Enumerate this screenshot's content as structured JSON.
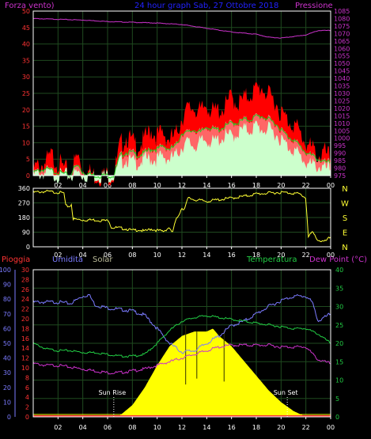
{
  "colors": {
    "background": "#000000",
    "frame": "#ffffff",
    "grid": "#1f4a1f",
    "wind_gust": "#ff0000",
    "wind_avg": "#ff6666",
    "wind_low": "#ccffcc",
    "wind_mid": "#22cc22",
    "pressure": "#cc33cc",
    "direction": "#ffff33",
    "rain_axis": "#ff3333",
    "humidity": "#7b7bff",
    "solar": "#ffff00",
    "temperature": "#22cc44",
    "dewpoint": "#cc33cc",
    "title": "#2222ff",
    "sun_label": "#ffffff"
  },
  "header": {
    "left": "Forza vento)",
    "center": "24 hour graph Sab, 27 Ottobre 2018",
    "right": "Pressione"
  },
  "panel3_labels": {
    "rain": "Pioggia",
    "humidity": "Umidita",
    "solar": "Solar",
    "temperature": "Temperatura",
    "dewpoint": "Dew Point (°C)",
    "sunrise": "Sun Rise",
    "sunset": "Sun Set"
  },
  "chart_data": [
    {
      "type": "line",
      "panel": "wind_pressure",
      "x_tick_labels": [
        "02",
        "04",
        "06",
        "08",
        "10",
        "12",
        "14",
        "16",
        "18",
        "20",
        "22",
        "00"
      ],
      "xlim_hours": [
        0,
        24
      ],
      "left_axis": {
        "label": "Forza vento)",
        "ylim": [
          0,
          50
        ],
        "ticks": [
          0,
          5,
          10,
          15,
          20,
          25,
          30,
          35,
          40,
          45,
          50
        ]
      },
      "right_axis": {
        "label": "Pressione",
        "ylim": [
          975,
          1085
        ],
        "ticks": [
          975,
          980,
          985,
          990,
          995,
          1000,
          1005,
          1010,
          1015,
          1020,
          1025,
          1030,
          1035,
          1040,
          1045,
          1050,
          1055,
          1060,
          1065,
          1070,
          1075,
          1080,
          1085
        ]
      },
      "series": [
        {
          "name": "Pressione",
          "axis": "right",
          "hours": [
            0,
            2,
            4,
            6,
            8,
            10,
            12,
            14,
            16,
            18,
            19,
            20,
            21,
            22,
            23,
            24
          ],
          "values": [
            1080,
            1079.5,
            1079,
            1078,
            1077.5,
            1077,
            1076,
            1073.5,
            1071,
            1069.5,
            1067.5,
            1067,
            1068,
            1069,
            1072,
            1072
          ]
        },
        {
          "hours": [
            0,
            1,
            1.5,
            2,
            3,
            3.2,
            3.6,
            4,
            4.5,
            5,
            6,
            6.5,
            7,
            7.5,
            8,
            8.5,
            9,
            9.5,
            10,
            10.5,
            11,
            11.5,
            12,
            12.5,
            13,
            13.5,
            14,
            14.5,
            15,
            15.5,
            16,
            16.5,
            17,
            17.5,
            18,
            18.5,
            19,
            19.5,
            20,
            20.5,
            21,
            21.5,
            22,
            22.5,
            23,
            23.5,
            24
          ],
          "values": [
            2,
            4,
            6,
            4,
            0,
            3,
            6,
            2,
            1,
            0,
            0,
            0,
            9,
            12,
            10,
            9,
            11,
            14,
            12,
            13,
            11,
            12,
            18,
            20,
            21,
            19,
            22,
            19,
            20,
            21,
            24,
            22,
            23,
            25,
            26,
            27,
            24,
            23,
            19,
            17,
            16,
            13,
            10,
            8,
            6,
            7,
            5
          ]
        },
        {
          "hours": [
            0,
            1,
            2,
            3,
            3.2,
            3.6,
            4,
            5,
            6,
            6.5,
            7,
            7.5,
            8,
            8.5,
            9,
            9.5,
            10,
            10.5,
            11,
            11.5,
            12,
            12.5,
            13,
            13.5,
            14,
            14.5,
            15,
            15.5,
            16,
            16.5,
            17,
            17.5,
            18,
            18.5,
            19,
            19.5,
            20,
            20.5,
            21,
            21.5,
            22,
            22.5,
            23,
            23.5,
            24
          ],
          "values": [
            1,
            2,
            1,
            0,
            2,
            3,
            1,
            0,
            0,
            0,
            6,
            7,
            7,
            6,
            7,
            8,
            8,
            9,
            8,
            9,
            13,
            13,
            14,
            13,
            15,
            14,
            14,
            15,
            16,
            16,
            17,
            17,
            18,
            18,
            17,
            16,
            14,
            12,
            11,
            9,
            7,
            6,
            5,
            4,
            4
          ]
        },
        {
          "hours": [
            0,
            1,
            2,
            3,
            3.6,
            4,
            5,
            6,
            6.5,
            7,
            7.5,
            8,
            8.5,
            9,
            9.5,
            10,
            10.5,
            11,
            11.5,
            12,
            12.5,
            13,
            13.5,
            14,
            14.5,
            15,
            15.5,
            16,
            16.5,
            17,
            17.5,
            18,
            18.5,
            19,
            19.5,
            20,
            20.5,
            21,
            21.5,
            22,
            22.5,
            23,
            23.5,
            24
          ],
          "values": [
            0,
            1,
            0,
            0,
            1,
            0,
            0,
            0,
            0,
            4,
            5,
            4,
            4,
            5,
            5,
            5,
            6,
            5,
            6,
            9,
            10,
            9,
            10,
            11,
            10,
            11,
            12,
            12,
            13,
            14,
            14,
            15,
            14,
            14,
            13,
            11,
            9,
            8,
            6,
            4,
            3,
            3,
            2,
            2
          ]
        }
      ]
    },
    {
      "type": "line",
      "panel": "wind_direction",
      "x_tick_labels": [
        "02",
        "04",
        "06",
        "08",
        "10",
        "12",
        "14",
        "16",
        "18",
        "20",
        "22",
        "00"
      ],
      "xlim_hours": [
        0,
        24
      ],
      "left_axis": {
        "ylim": [
          0,
          360
        ],
        "ticks": [
          0,
          90,
          180,
          270,
          360
        ]
      },
      "right_axis": {
        "ticks": [
          "N",
          "W",
          "S",
          "E",
          "N"
        ]
      },
      "series": [
        {
          "hours": [
            0,
            1,
            2,
            2.5,
            2.6,
            3,
            3.1,
            3.2,
            4,
            5,
            6,
            6.1,
            6.3,
            7,
            7.5,
            8,
            8.5,
            9,
            9.5,
            10,
            10.5,
            11,
            11.2,
            11.5,
            12,
            12.2,
            12.5,
            13,
            13.5,
            14,
            15,
            16,
            17,
            18,
            19,
            20,
            21,
            21.5,
            22,
            22.2,
            22.5,
            23,
            23.5,
            24
          ],
          "values": [
            335,
            340,
            335,
            330,
            250,
            250,
            270,
            170,
            165,
            165,
            160,
            165,
            120,
            115,
            110,
            100,
            105,
            95,
            110,
            100,
            95,
            120,
            80,
            160,
            240,
            230,
            300,
            290,
            285,
            280,
            290,
            300,
            310,
            325,
            330,
            335,
            330,
            325,
            300,
            60,
            90,
            40,
            30,
            60
          ]
        }
      ]
    },
    {
      "type": "line",
      "panel": "temp_humidity_solar_rain",
      "x_tick_labels": [
        "02",
        "04",
        "06",
        "08",
        "10",
        "12",
        "14",
        "16",
        "18",
        "20",
        "22",
        "00"
      ],
      "xlim_hours": [
        0,
        24
      ],
      "axes": {
        "rain": {
          "label": "Pioggia",
          "ylim": [
            0,
            30
          ],
          "ticks": [
            0,
            2,
            4,
            6,
            8,
            10,
            12,
            14,
            16,
            18,
            20,
            22,
            24,
            26,
            28,
            30
          ]
        },
        "humidity": {
          "label": "Umidita",
          "ylim": [
            0,
            100
          ],
          "ticks": [
            0,
            10,
            20,
            30,
            40,
            50,
            60,
            70,
            80,
            90,
            100
          ]
        },
        "temperature": {
          "label": "Temperatura",
          "ylim": [
            0,
            40
          ],
          "ticks": [
            0,
            5,
            10,
            15,
            20,
            25,
            30,
            35,
            40
          ]
        }
      },
      "series": [
        {
          "name": "Umidita",
          "axis": "humidity",
          "hours": [
            0,
            1,
            2,
            3,
            4,
            4.5,
            5,
            6,
            7,
            8,
            9,
            10,
            11,
            12,
            13,
            14,
            15,
            16,
            17,
            18,
            19,
            20,
            21,
            22,
            22.5,
            23,
            24
          ],
          "values": [
            78,
            78,
            78,
            77,
            82,
            83,
            76,
            74,
            73,
            72,
            69,
            60,
            50,
            44,
            45,
            50,
            55,
            62,
            65,
            70,
            75,
            79,
            82,
            82,
            78,
            65,
            70
          ]
        },
        {
          "name": "Solar",
          "axis": "humidity",
          "hours": [
            0,
            6.8,
            7,
            8,
            9,
            10,
            11,
            12,
            13,
            14,
            14.5,
            15,
            16,
            17,
            18,
            19,
            20,
            21,
            22,
            24
          ],
          "values": [
            0,
            0,
            1,
            8,
            20,
            35,
            48,
            55,
            58,
            58,
            60,
            55,
            48,
            38,
            28,
            18,
            10,
            4,
            0,
            0
          ]
        },
        {
          "name": "Temperatura",
          "axis": "temperature",
          "hours": [
            0,
            1,
            2,
            3,
            4,
            5,
            6,
            7,
            8,
            9,
            10,
            11,
            12,
            13,
            14,
            15,
            16,
            17,
            18,
            19,
            20,
            21,
            22,
            23,
            24
          ],
          "values": [
            20,
            18.5,
            18,
            18,
            17.5,
            17.5,
            17,
            16.5,
            16.5,
            17,
            20,
            23.5,
            26,
            27,
            27.5,
            27,
            26.5,
            26,
            25.5,
            25,
            24.5,
            24,
            24,
            22.5,
            20
          ]
        },
        {
          "name": "Dew Point",
          "axis": "temperature",
          "hours": [
            0,
            1,
            2,
            3,
            4,
            5,
            6,
            7,
            8,
            9,
            10,
            11,
            12,
            13,
            14,
            15,
            16,
            17,
            18,
            19,
            20,
            21,
            22,
            23,
            24
          ],
          "values": [
            14.5,
            14,
            14,
            13.5,
            13,
            12.5,
            12,
            12,
            12.5,
            13,
            14,
            15,
            16,
            17,
            18,
            19,
            19.5,
            19.5,
            19.5,
            19.5,
            19,
            19,
            19,
            15.5,
            14.5
          ]
        },
        {
          "name": "Pioggia",
          "axis": "rain",
          "hours": [
            0,
            24
          ],
          "values": [
            0,
            0
          ]
        }
      ],
      "sun_rise_hour": 6.5,
      "sun_set_hour": 20.5
    }
  ]
}
